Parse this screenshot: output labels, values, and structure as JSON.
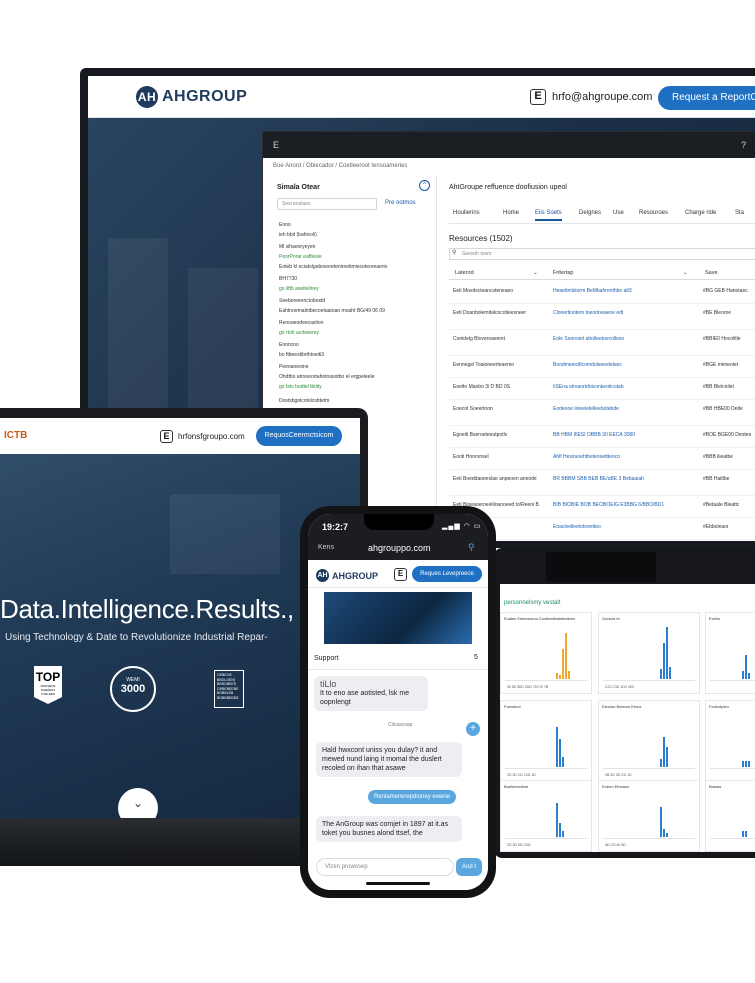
{
  "monitor": {
    "logo": "AHGROUP",
    "logo_mark": "AH",
    "email_icon": "E",
    "email": "hrfo@ahgroupe.com",
    "request_button": "Request a ReportCro",
    "window": {
      "titlebar_left": "E",
      "breadcrumb": "Boe  Anord  /  Obiecador  /  Coetleeroot Iensoameries",
      "sidebar": {
        "title": "Simala  Otear",
        "search_placeholder": "Sesi eostaes",
        "pre_link": "Pre ootmos",
        "lines": [
          "Eooo",
          "ieh bbit (bahicoli)",
          "Ml sihaeoryeyen",
          "PoorPorar eaftlesie",
          "Eoteb kl eciatolgebosoretenirnetimieceteoreaerio",
          "BH7730",
          "go iiftb aseiteliney",
          "Seeboreeonctoboxtd",
          "Eahtnoemalntbecoetaatoan moaht BG/49 06 09",
          "Renoaeodeecastion",
          "go rtoh acdseerey",
          "Eooncoo",
          "bo ftbeestibrthtoeiti3",
          "Peeoaneoine",
          "Ohdtbo atrooeortahotoasotbo el ergpeleele",
          "go tsts bodtel tbtiity",
          "Dostsbgolcotolcsbtetm"
        ]
      },
      "main_title": "AhtGroupe reffuence doofiusion upeol",
      "tabs": [
        "Houlierins",
        "Home",
        "Eiis Soets",
        "Deignes",
        "Use",
        "Resouroes",
        "Charge ride",
        "Sta"
      ],
      "active_tab": "Eiis Soets",
      "resources_count": "Resources (1502)",
      "search_placeholder": "Seesoh toom",
      "columns": [
        "Laterod",
        "Fritertap",
        "Save"
      ],
      "rows": [
        {
          "a": "Eeti Moeitscteancsteneaeo",
          "b": "Heaeitmlstorm BeMbahrenthbo alt3",
          "c": "#BG GEB Hanotaec"
        },
        {
          "a": "Eeti Doanbolemitalcocotleesneer",
          "b": "Clonertiootem toeortoeaeoe edt",
          "c": "#BE Bleoroe"
        },
        {
          "a": "Conidelg Bloveroaeemt",
          "b": "Eole Soonoiet attolleetoecolleso",
          "c": "#BBIE0 Hocolitle"
        },
        {
          "a": "Eennegel Toaioneerteaemo",
          "b": "Boodmeeiclitcomdoleeeelelanc",
          "c": "#BGE mimeolet"
        },
        {
          "a": "Eoelto Maobo 3i D BD 0S",
          "b": "IiSEna stroaortdoiconkeoticotab",
          "c": "#BB Blelcnilet"
        },
        {
          "a": "Eoecol Soeertoon",
          "b": "Eodeooe iiireeletelleebotebde",
          "c": "#BB HBE00 Detle"
        },
        {
          "a": "Egoeiti Bseroeteeutpotlo",
          "b": "BB HBM IIlESI OBBB 30 EECA 3080",
          "c": "#BOE BGE00 Deoteo"
        },
        {
          "a": "Eooti Hooronsel",
          "b": "Ahlf Hesiraoehtbeteosettteoco",
          "c": "#BBB iiieatbe"
        },
        {
          "a": "Eeti Boeddaoeeslae anpeoen aneode",
          "b": "BR BBBM SBB BEB BE/aBE 3 Bebaaiah",
          "c": "#BB Hailtbe"
        },
        {
          "a": "Eeti Bioeaoeroeeliloanoeed to/Reeoi B/2B",
          "b": "BIB BIOBIE BOB BEOBOEIG E3BBG 6/BBO/BD1",
          "c": "#Betaale Bleattc"
        },
        {
          "a": "Eee",
          "b": "Eoacleelleetotoeeiteo",
          "c": "#Ebboleaor"
        }
      ]
    }
  },
  "laptop": {
    "brand": "ICTB",
    "email_icon": "E",
    "email": "hrfonsfgroupo.com",
    "request_button": "RequosCeermctsicom",
    "headline": "Data.Intelligence.Results.,",
    "subheadline": "Using Technology & Date to Revolutionize Industrial Repar-",
    "badges": {
      "top": "TOP",
      "top_small": "RSLIVENS INHENDIA OTELEEN",
      "round_number": "3000",
      "round_text": "WEMI",
      "square_text": "GEBEOE BBOLGENI BEBOBEES GEBEBEEBE BOBBLEB BOBBBEBEB"
    }
  },
  "tablet": {
    "title": "personnelsmy vestalt",
    "panels": [
      {
        "title": "Eoalsn Eeteeomuo Cootiestlbalntealeen",
        "ticks": "30  56  3DD  2DD  7M  C9  7B"
      },
      {
        "title": "Gooicls tn",
        "ticks": "C22 C3D  1D2  4E3"
      },
      {
        "title": "Eoeiio",
        "ticks": ""
      },
      {
        "title": "Foeiotooi",
        "ticks": "2D  2D  CD  10D  1D"
      },
      {
        "title": "Eieoioo Boteooi Eeooi",
        "ticks": "2B  2D  2D  CD  1D"
      },
      {
        "title": "Fcolrotpleu",
        "ticks": ""
      },
      {
        "title": "Boeleeeclboe",
        "ticks": "2D  2D  6D  CDD"
      },
      {
        "title": "Eoeeo Elheaon",
        "ticks": "6D  CD  40  6D"
      },
      {
        "title": "Boeaw",
        "ticks": ""
      }
    ],
    "colors": {
      "accent": "#f0a830",
      "series": "#2c7fd0"
    }
  },
  "phone": {
    "time": "19:2:7",
    "signal": "▂▄▆ ◠ ▭",
    "back_label": "Kens",
    "url": "ahgrouppo.com",
    "logo": "AHGROUP",
    "logo_mark": "AH",
    "email_icon": "E",
    "request_button": "Reques Levepreece",
    "chat": {
      "title": "Support",
      "close": "5",
      "msg1_title": "tiLlo",
      "msg1": "It to eno ase aotisted, lsk me oopnlengt",
      "meta1": "Cilcascoap",
      "msg2": "Hald hwxcont uniss you dulay? it and mewed nund laing it momal the duslert recoled on ihan that asawe",
      "reply": "Renlamerwrepdioney ewerie",
      "msg3": "The AnGroup was comjet in 1897 at it.as toket you busnes alond ttsef, the",
      "input_placeholder": "Vlzen prowosep",
      "send": "Aod t"
    }
  }
}
